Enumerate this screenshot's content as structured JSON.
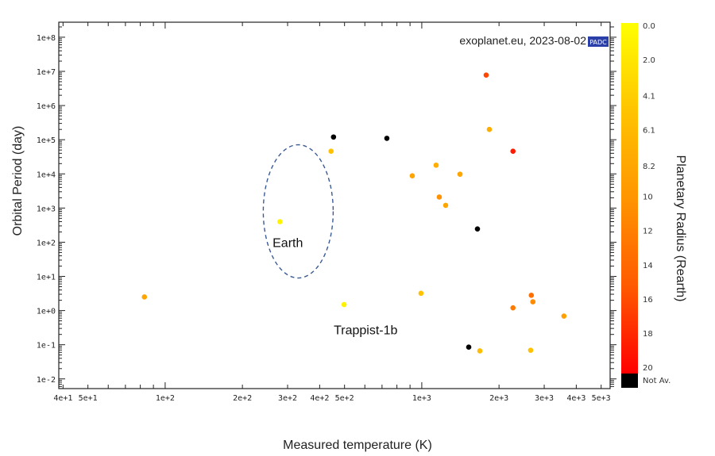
{
  "chart_data": {
    "type": "scatter",
    "title": "",
    "xlabel": "Measured temperature (K)",
    "ylabel": "Orbital Period (day)",
    "xscale": "log",
    "yscale": "log",
    "xlim": [
      38.5,
      5420
    ],
    "ylim": [
      0.0052,
      275000000.0
    ],
    "x_ticks": [
      {
        "value": 40,
        "label": "4e+1"
      },
      {
        "value": 50,
        "label": "5e+1"
      },
      {
        "value": 100,
        "label": "1e+2"
      },
      {
        "value": 200,
        "label": "2e+2"
      },
      {
        "value": 300,
        "label": "3e+2"
      },
      {
        "value": 400,
        "label": "4e+2"
      },
      {
        "value": 500,
        "label": "5e+2"
      },
      {
        "value": 1000,
        "label": "1e+3"
      },
      {
        "value": 2000,
        "label": "2e+3"
      },
      {
        "value": 3000,
        "label": "3e+3"
      },
      {
        "value": 4000,
        "label": "4e+3"
      },
      {
        "value": 5000,
        "label": "5e+3"
      }
    ],
    "y_ticks": [
      {
        "value": 100000000.0,
        "label": "1e+8"
      },
      {
        "value": 10000000.0,
        "label": "1e+7"
      },
      {
        "value": 1000000.0,
        "label": "1e+6"
      },
      {
        "value": 100000.0,
        "label": "1e+5"
      },
      {
        "value": 10000.0,
        "label": "1e+4"
      },
      {
        "value": 1000.0,
        "label": "1e+3"
      },
      {
        "value": 100,
        "label": "1e+2"
      },
      {
        "value": 10,
        "label": "1e+1"
      },
      {
        "value": 1,
        "label": "1e+0"
      },
      {
        "value": 0.1,
        "label": "1e-1"
      },
      {
        "value": 0.01,
        "label": "1e-2"
      }
    ],
    "colorbar": {
      "label": "Planetary Radius (Rearth)",
      "range": [
        0,
        20.5
      ],
      "ticks": [
        "0.0",
        "2.0",
        "4.1",
        "6.1",
        "8.2",
        "10",
        "12",
        "14",
        "16",
        "18",
        "20"
      ],
      "tick_values": [
        0,
        2.0,
        4.1,
        6.1,
        8.2,
        10,
        12,
        14,
        16,
        18,
        20
      ],
      "not_available_label": "Not Av.",
      "colors": [
        "#ffff00",
        "#ffcc00",
        "#ff9900",
        "#ff6600",
        "#ff0000"
      ],
      "not_available_color": "#000000"
    },
    "credit": "exoplanet.eu, 2023-08-02",
    "logo_text": "PADC",
    "points": [
      {
        "x": 83,
        "y": 2.5,
        "r": 8.5
      },
      {
        "x": 280,
        "y": 400,
        "r": 1.0
      },
      {
        "x": 443,
        "y": 46000,
        "r": 5.5
      },
      {
        "x": 453,
        "y": 120000,
        "r": null
      },
      {
        "x": 731,
        "y": 110000,
        "r": null
      },
      {
        "x": 498,
        "y": 1.5,
        "r": 1.1
      },
      {
        "x": 918,
        "y": 8800,
        "r": 8.5
      },
      {
        "x": 993,
        "y": 3.2,
        "r": 5.5
      },
      {
        "x": 1137,
        "y": 18000,
        "r": 7.5
      },
      {
        "x": 1170,
        "y": 2100,
        "r": 10.5
      },
      {
        "x": 1239,
        "y": 1200,
        "r": 8.5
      },
      {
        "x": 1409,
        "y": 9800,
        "r": 8.5
      },
      {
        "x": 1524,
        "y": 0.085,
        "r": null
      },
      {
        "x": 1648,
        "y": 245,
        "r": null
      },
      {
        "x": 1684,
        "y": 0.066,
        "r": 6.0
      },
      {
        "x": 1782,
        "y": 7800000,
        "r": 16.5
      },
      {
        "x": 1834,
        "y": 200000,
        "r": 7.5
      },
      {
        "x": 2267,
        "y": 46000,
        "r": 19.0
      },
      {
        "x": 2267,
        "y": 1.2,
        "r": 12.5
      },
      {
        "x": 2672,
        "y": 2.8,
        "r": 13.5
      },
      {
        "x": 2710,
        "y": 1.8,
        "r": 11.0
      },
      {
        "x": 2656,
        "y": 0.069,
        "r": 5.5
      },
      {
        "x": 3581,
        "y": 0.69,
        "r": 9.0
      }
    ],
    "annotations": [
      {
        "text": "Earth",
        "x": 290,
        "y": 100
      },
      {
        "text": "Trappist-1b",
        "x": 600,
        "y": 0.28
      }
    ],
    "highlight_ellipse": {
      "center_x": 330,
      "center_y": 800,
      "style": "dashed"
    }
  }
}
